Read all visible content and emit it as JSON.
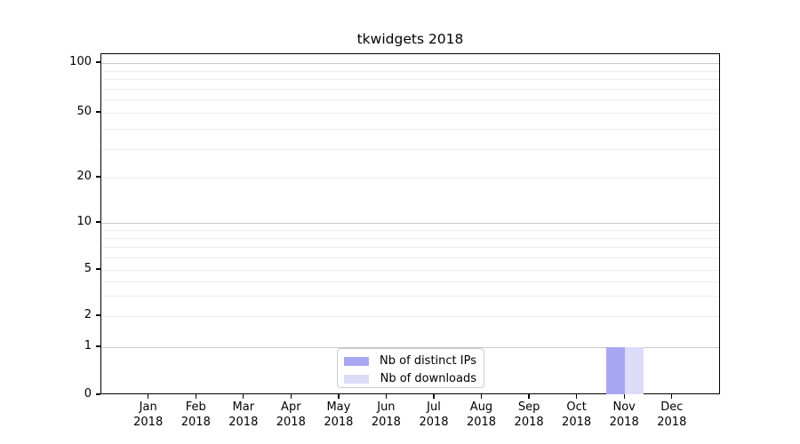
{
  "title": "tkwidgets 2018",
  "chart_data": {
    "type": "bar",
    "title": "tkwidgets 2018",
    "categories": [
      "Jan",
      "Feb",
      "Mar",
      "Apr",
      "May",
      "Jun",
      "Jul",
      "Aug",
      "Sep",
      "Oct",
      "Nov",
      "Dec"
    ],
    "category_year": "2018",
    "series": [
      {
        "name": "Nb of distinct IPs",
        "color": "#a7a7f3",
        "values": [
          0,
          0,
          0,
          0,
          0,
          0,
          0,
          0,
          0,
          0,
          1,
          0
        ]
      },
      {
        "name": "Nb of downloads",
        "color": "#dcdcf9",
        "values": [
          0,
          0,
          0,
          0,
          0,
          0,
          0,
          0,
          0,
          0,
          1,
          0
        ]
      }
    ],
    "y_ticks": [
      0,
      1,
      2,
      5,
      10,
      20,
      50,
      100
    ],
    "ylim": [
      0,
      100
    ],
    "y_scale": "symlog",
    "grid": true,
    "legend_position": "lower-center"
  },
  "colors": {
    "grid_minor": "#ededed",
    "grid_major": "#c9c9c9",
    "axis": "#000000",
    "background": "#ffffff",
    "text": "#000000"
  }
}
